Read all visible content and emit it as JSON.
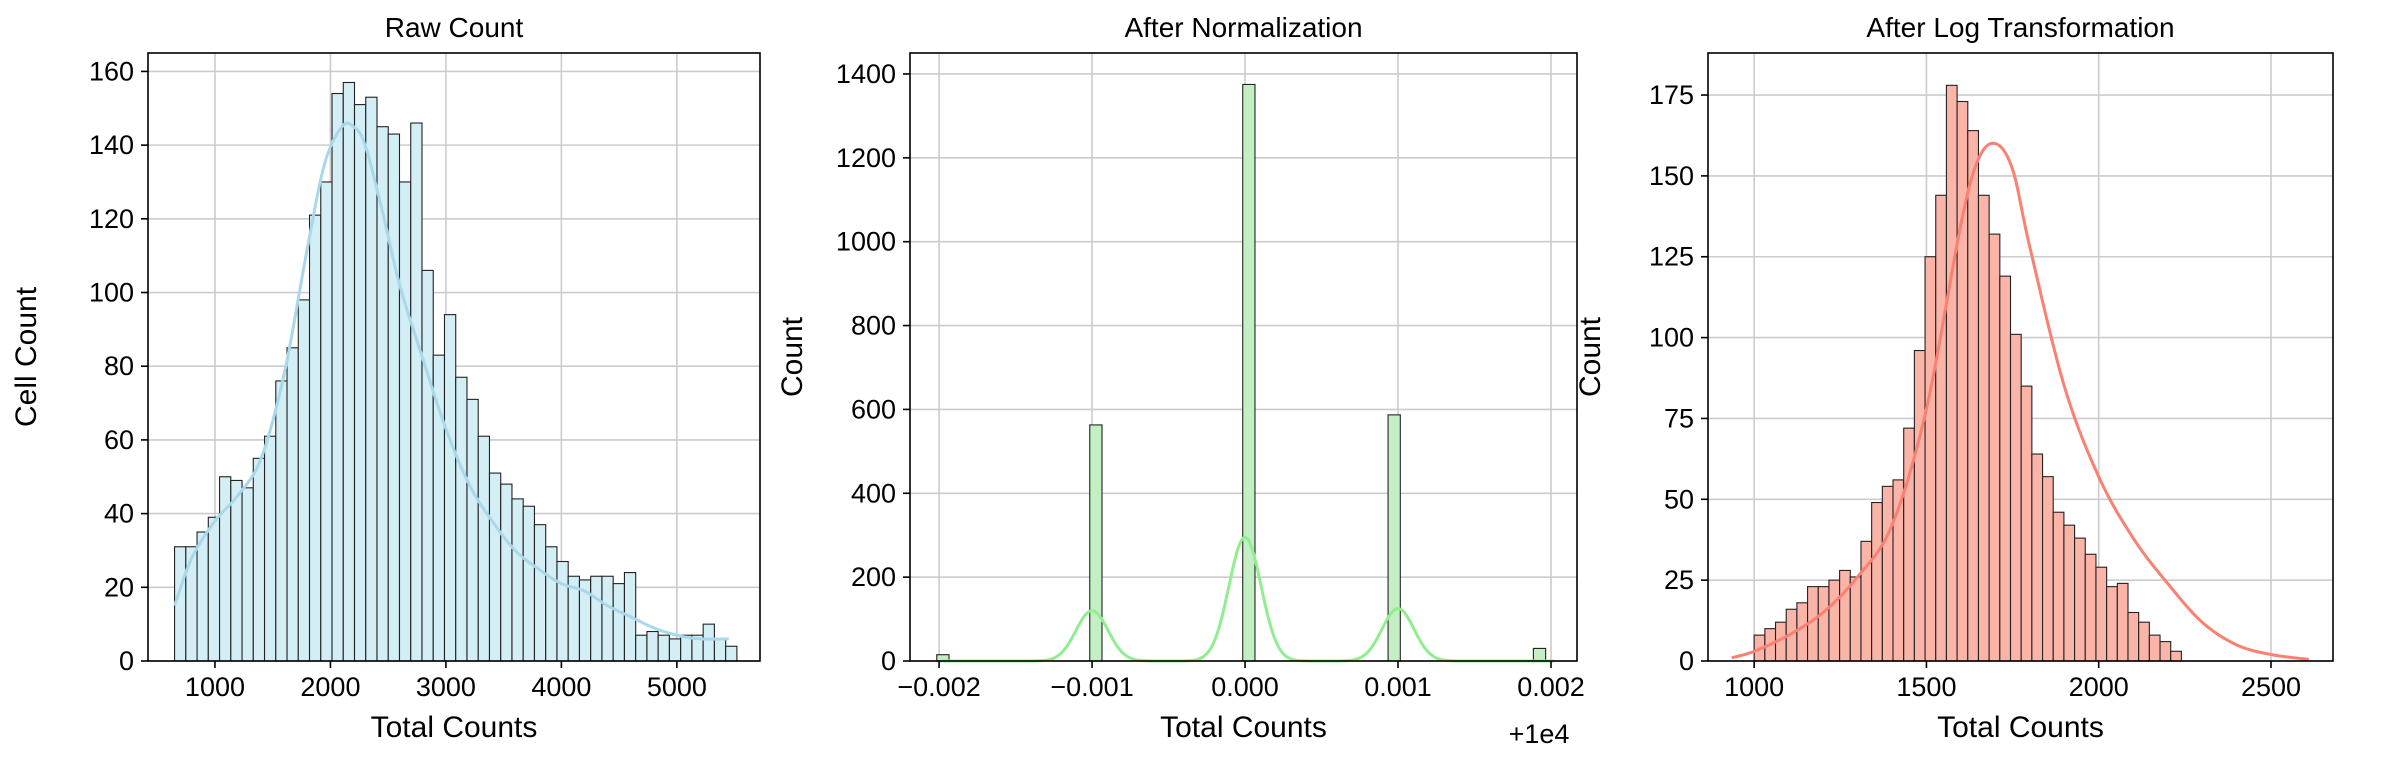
{
  "chart_data": [
    {
      "type": "bar",
      "subtype": "histogram-with-kde",
      "title": "Raw Count",
      "xlabel": "Total Counts",
      "ylabel": "Cell Count",
      "xlim": [
        420,
        5720
      ],
      "ylim": [
        0,
        165
      ],
      "xticks": [
        1000,
        2000,
        3000,
        4000,
        5000
      ],
      "yticks": [
        0,
        20,
        40,
        60,
        80,
        100,
        120,
        140,
        160
      ],
      "grid": true,
      "bar_color": "#d3eef5",
      "kde_color": "#a8d8ea",
      "bin_start": 650,
      "bin_width": 97.4,
      "values": [
        31,
        31,
        35,
        39,
        50,
        49,
        47,
        55,
        61,
        76,
        85,
        98,
        121,
        130,
        154,
        157,
        151,
        153,
        145,
        143,
        130,
        146,
        106,
        83,
        94,
        77,
        71,
        61,
        51,
        48,
        44,
        42,
        37,
        31,
        27,
        23,
        22,
        23,
        23,
        21,
        24,
        7,
        8,
        7,
        6,
        7,
        7,
        10,
        6,
        4
      ],
      "kde": {
        "x": [
          650,
          800,
          1000,
          1200,
          1400,
          1600,
          1800,
          1950,
          2100,
          2200,
          2300,
          2450,
          2600,
          2800,
          3000,
          3200,
          3400,
          3600,
          3800,
          4000,
          4200,
          4400,
          4600,
          4800,
          5000,
          5200,
          5450
        ],
        "y": [
          15,
          28,
          38,
          45,
          55,
          78,
          112,
          135,
          145,
          145,
          140,
          122,
          102,
          82,
          63,
          48,
          38,
          30,
          25,
          21,
          19,
          15,
          12,
          9,
          7,
          6,
          6
        ]
      }
    },
    {
      "type": "bar",
      "subtype": "histogram-with-kde",
      "title": "After Normalization",
      "xlabel": "Total Counts",
      "ylabel": "Count",
      "offset_label": "+1e4",
      "xlim": [
        -0.00219,
        0.00217
      ],
      "ylim": [
        0,
        1450
      ],
      "xticks": [
        -0.002,
        -0.001,
        0.0,
        0.001,
        0.002
      ],
      "xtick_labels": [
        "−0.002",
        "−0.001",
        "0.000",
        "0.001",
        "0.002"
      ],
      "yticks": [
        0,
        200,
        400,
        600,
        800,
        1000,
        1200,
        1400
      ],
      "grid": true,
      "bar_color": "#c4efc4",
      "kde_color": "#90ee90",
      "bins": [
        {
          "x": -0.001975,
          "count": 15
        },
        {
          "x": -0.000975,
          "count": 563
        },
        {
          "x": 2.5e-05,
          "count": 1375
        },
        {
          "x": 0.000975,
          "count": 587
        },
        {
          "x": 0.001925,
          "count": 30
        }
      ],
      "bin_width": 8e-05,
      "kde_peaks": [
        {
          "center": -0.001,
          "height": 120,
          "sigma": 0.000105
        },
        {
          "center": 0.0,
          "height": 295,
          "sigma": 0.000105
        },
        {
          "center": 0.001,
          "height": 125,
          "sigma": 0.000105
        }
      ]
    },
    {
      "type": "bar",
      "subtype": "histogram-with-kde",
      "title": "After Log Transformation",
      "xlabel": "Total Counts",
      "ylabel": "Count",
      "xlim": [
        866,
        2680
      ],
      "ylim": [
        0,
        188
      ],
      "xticks": [
        1000,
        1500,
        2000,
        2500
      ],
      "yticks": [
        0,
        25,
        50,
        75,
        100,
        125,
        150,
        175
      ],
      "grid": true,
      "bar_color": "#fab5a8",
      "kde_color": "#fa8072",
      "bin_start": 1000,
      "bin_width": 31,
      "values": [
        8,
        10,
        12,
        16,
        18,
        23,
        23,
        25,
        28,
        26,
        37,
        49,
        54,
        56,
        72,
        96,
        125,
        144,
        178,
        173,
        164,
        144,
        132,
        119,
        101,
        85,
        64,
        57,
        46,
        42,
        38,
        33,
        29,
        23,
        24,
        15,
        12,
        8,
        6,
        3
      ],
      "kde": {
        "x": [
          935,
          1000,
          1100,
          1200,
          1300,
          1400,
          1500,
          1600,
          1650,
          1700,
          1750,
          1800,
          1900,
          2000,
          2100,
          2200,
          2300,
          2400,
          2500,
          2610
        ],
        "y": [
          1,
          3,
          8,
          15,
          26,
          42,
          78,
          135,
          155,
          160,
          152,
          128,
          85,
          57,
          38,
          24,
          12,
          5,
          2,
          0.5
        ]
      }
    }
  ]
}
